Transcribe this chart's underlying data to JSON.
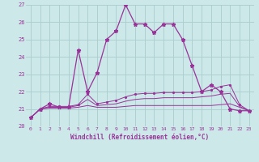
{
  "xlabel": "Windchill (Refroidissement éolien,°C)",
  "background_color": "#cce8e8",
  "line_color": "#993399",
  "grid_color": "#aacccc",
  "text_color": "#993399",
  "xlim": [
    -0.5,
    23.5
  ],
  "ylim": [
    20,
    27
  ],
  "yticks": [
    20,
    21,
    22,
    23,
    24,
    25,
    26,
    27
  ],
  "xticks": [
    0,
    1,
    2,
    3,
    4,
    5,
    6,
    7,
    8,
    9,
    10,
    11,
    12,
    13,
    14,
    15,
    16,
    17,
    18,
    19,
    20,
    21,
    22,
    23
  ],
  "series1_x": [
    0,
    1,
    2,
    3,
    4,
    5,
    6,
    7,
    8,
    9,
    10,
    11,
    12,
    13,
    14,
    15,
    16,
    17,
    18,
    19,
    20,
    21,
    22,
    23
  ],
  "series1_y": [
    20.5,
    21.0,
    21.3,
    21.1,
    21.1,
    24.4,
    22.0,
    23.1,
    25.0,
    25.5,
    27.0,
    25.9,
    25.9,
    25.4,
    25.9,
    25.9,
    25.0,
    23.5,
    22.0,
    22.4,
    22.0,
    21.0,
    20.9,
    20.9
  ],
  "series2_x": [
    0,
    1,
    2,
    3,
    4,
    5,
    6,
    7,
    8,
    9,
    10,
    11,
    12,
    13,
    14,
    15,
    16,
    17,
    18,
    19,
    20,
    21,
    22,
    23
  ],
  "series2_y": [
    20.5,
    21.0,
    21.05,
    21.05,
    21.05,
    21.1,
    21.2,
    21.1,
    21.1,
    21.1,
    21.15,
    21.2,
    21.2,
    21.2,
    21.2,
    21.2,
    21.2,
    21.2,
    21.2,
    21.2,
    21.25,
    21.3,
    21.1,
    20.9
  ],
  "series3_x": [
    0,
    1,
    2,
    3,
    4,
    5,
    6,
    7,
    8,
    9,
    10,
    11,
    12,
    13,
    14,
    15,
    16,
    17,
    18,
    19,
    20,
    21,
    22,
    23
  ],
  "series3_y": [
    20.5,
    21.0,
    21.1,
    21.1,
    21.1,
    21.2,
    21.55,
    21.2,
    21.25,
    21.3,
    21.45,
    21.55,
    21.6,
    21.6,
    21.65,
    21.65,
    21.65,
    21.65,
    21.7,
    21.75,
    21.85,
    21.9,
    21.15,
    20.9
  ],
  "series4_x": [
    0,
    1,
    2,
    3,
    4,
    5,
    6,
    7,
    8,
    9,
    10,
    11,
    12,
    13,
    14,
    15,
    16,
    17,
    18,
    19,
    20,
    21,
    22,
    23
  ],
  "series4_y": [
    20.5,
    21.0,
    21.15,
    21.15,
    21.15,
    21.25,
    21.85,
    21.3,
    21.4,
    21.5,
    21.7,
    21.85,
    21.9,
    21.9,
    21.95,
    21.95,
    21.95,
    21.95,
    22.0,
    22.1,
    22.3,
    22.4,
    21.25,
    20.9
  ]
}
